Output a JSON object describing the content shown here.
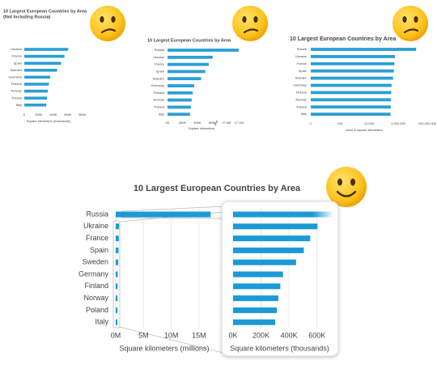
{
  "chart_data": [
    {
      "type": "bar",
      "orientation": "horizontal",
      "title": "10 Largest European Countries by Area",
      "subtitle": "(Not Including Russia)",
      "categories": [
        "Ukraine",
        "France",
        "Spain",
        "Sweden",
        "Germany",
        "Finland",
        "Norway",
        "Poland",
        "Italy"
      ],
      "values": [
        603550,
        551695,
        505990,
        450295,
        357022,
        338145,
        323802,
        312696,
        301340
      ],
      "color": "#2a9fd6",
      "xlabel": "Square kilometers (thousands)",
      "xlim": [
        0,
        800000
      ],
      "xticks": [
        0,
        {
          "value": 200000,
          "label": "200K"
        },
        {
          "value": 400000,
          "label": "400K"
        },
        {
          "value": 600000,
          "label": "600K"
        },
        {
          "value": 800000,
          "label": "800K"
        }
      ],
      "grid": false
    },
    {
      "type": "bar",
      "orientation": "horizontal",
      "title": "10 Largest European Countries by Area",
      "categories": [
        "Russia",
        "Ukraine",
        "France",
        "Spain",
        "Sweden",
        "Germany",
        "Finland",
        "Norway",
        "Poland",
        "Italy"
      ],
      "values": [
        17098246,
        603550,
        551695,
        505990,
        450295,
        357022,
        338145,
        323802,
        312696,
        301340
      ],
      "color": "#2a9fd6",
      "xlabel": "Square kilometers",
      "xlim": [
        0,
        17150000
      ],
      "xbreak": [
        650000,
        16950000
      ],
      "xticks": [
        {
          "value": 0,
          "label": "0K"
        },
        {
          "value": 200000,
          "label": "200K"
        },
        {
          "value": 400000,
          "label": "400K"
        },
        {
          "value": 600000,
          "label": "600K"
        },
        {
          "value": 17000000,
          "label": "17.0M"
        },
        {
          "value": 17100000,
          "label": "17.1M"
        }
      ],
      "grid": false
    },
    {
      "type": "bar",
      "orientation": "horizontal",
      "title": "10 Largest European Countries by Area",
      "categories": [
        "Russia",
        "Ukraine",
        "France",
        "Spain",
        "Sweden",
        "Germany",
        "Finland",
        "Norway",
        "Poland",
        "Italy"
      ],
      "values": [
        17098246,
        603550,
        551695,
        505990,
        450295,
        357022,
        338145,
        323802,
        312696,
        301340
      ],
      "color": "#2a9fd6",
      "xlabel": "Area in square kilometers",
      "xscale": "log",
      "xlim": [
        1,
        100000000
      ],
      "xticks": [
        1,
        100,
        {
          "value": 10000,
          "label": "10,000"
        },
        {
          "value": 1000000,
          "label": "1,000,000"
        },
        {
          "value": 100000000,
          "label": "100,000,000"
        }
      ],
      "grid": false
    },
    {
      "type": "bar",
      "orientation": "horizontal",
      "title": "10 Largest European Countries by Area",
      "categories": [
        "Russia",
        "Ukraine",
        "France",
        "Spain",
        "Sweden",
        "Germany",
        "Finland",
        "Norway",
        "Poland",
        "Italy"
      ],
      "values": [
        17098246,
        603550,
        551695,
        505990,
        450295,
        357022,
        338145,
        323802,
        312696,
        301340
      ],
      "color": "#1b9ad6",
      "xlabel": "Square kilometers (millions)",
      "xlim": [
        0,
        17500000
      ],
      "xticks": [
        {
          "value": 0,
          "label": "0M"
        },
        {
          "value": 5000000,
          "label": "5M"
        },
        {
          "value": 10000000,
          "label": "10M"
        },
        {
          "value": 15000000,
          "label": "15M"
        }
      ],
      "grid": true,
      "zoom": {
        "xlabel": "Square kilometers (thousands)",
        "xlim": [
          0,
          700000
        ],
        "xticks": [
          {
            "value": 0,
            "label": "0K"
          },
          {
            "value": 200000,
            "label": "200K"
          },
          {
            "value": 400000,
            "label": "400K"
          },
          {
            "value": 600000,
            "label": "600K"
          }
        ]
      }
    }
  ]
}
